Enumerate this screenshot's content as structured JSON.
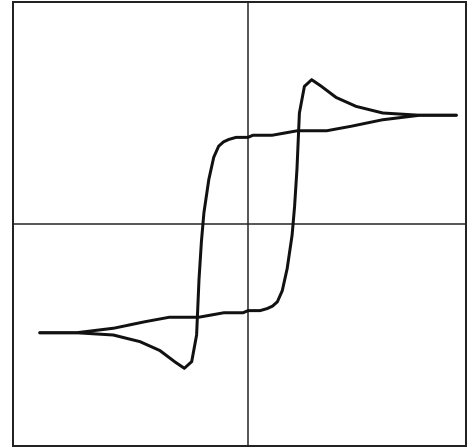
{
  "chart_data": {
    "type": "line",
    "title": "",
    "xlabel": "",
    "ylabel": "",
    "xlim": [
      -1.0,
      1.0
    ],
    "ylim": [
      -1.0,
      1.0
    ],
    "grid": false,
    "axes_cross_at_origin": true,
    "series": [
      {
        "branch": "descending",
        "x": [
          0.85,
          0.7,
          0.55,
          0.42,
          0.32,
          0.25,
          0.2,
          0.15,
          0.1,
          0.05,
          0.02,
          0.0,
          -0.02,
          -0.05,
          -0.08,
          -0.1,
          -0.12,
          -0.14,
          -0.16,
          -0.18,
          -0.19,
          -0.2,
          -0.21,
          -0.23,
          -0.26,
          -0.3,
          -0.36,
          -0.44,
          -0.55,
          -0.7,
          -0.85
        ],
        "y": [
          0.49,
          0.49,
          0.47,
          0.44,
          0.42,
          0.42,
          0.42,
          0.41,
          0.4,
          0.4,
          0.4,
          0.39,
          0.39,
          0.39,
          0.38,
          0.37,
          0.35,
          0.3,
          0.2,
          0.05,
          -0.08,
          -0.25,
          -0.5,
          -0.62,
          -0.65,
          -0.62,
          -0.57,
          -0.53,
          -0.5,
          -0.49,
          -0.49
        ]
      },
      {
        "branch": "ascending",
        "x": [
          -0.85,
          -0.7,
          -0.55,
          -0.42,
          -0.32,
          -0.25,
          -0.2,
          -0.15,
          -0.1,
          -0.05,
          -0.02,
          0.0,
          0.02,
          0.05,
          0.08,
          0.1,
          0.12,
          0.14,
          0.16,
          0.18,
          0.19,
          0.2,
          0.21,
          0.23,
          0.26,
          0.3,
          0.36,
          0.44,
          0.55,
          0.7,
          0.85
        ],
        "y": [
          -0.49,
          -0.49,
          -0.47,
          -0.44,
          -0.42,
          -0.42,
          -0.42,
          -0.41,
          -0.4,
          -0.4,
          -0.4,
          -0.39,
          -0.39,
          -0.39,
          -0.38,
          -0.37,
          -0.35,
          -0.3,
          -0.2,
          -0.05,
          0.08,
          0.25,
          0.5,
          0.62,
          0.65,
          0.62,
          0.57,
          0.53,
          0.5,
          0.49,
          0.49
        ]
      }
    ]
  },
  "colors": {
    "background": "#ffffff",
    "line": "#111111",
    "axes": "#222222"
  }
}
